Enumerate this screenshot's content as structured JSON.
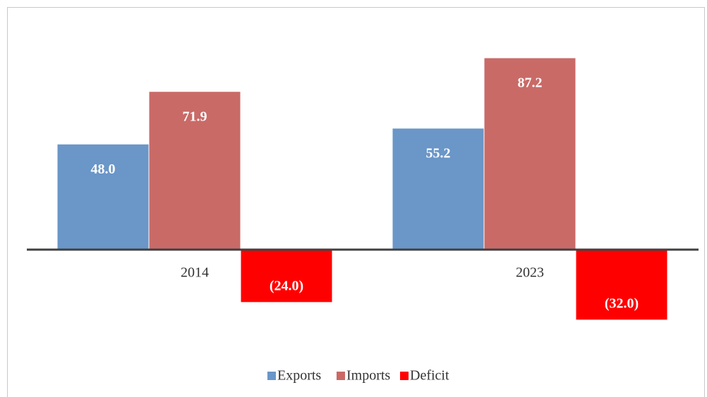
{
  "chart_data": {
    "type": "bar",
    "categories": [
      "2014",
      "2023"
    ],
    "series": [
      {
        "name": "Exports",
        "color": "#6a96c8",
        "values": [
          48.0,
          55.2
        ],
        "value_labels": [
          "48.0",
          "55.2"
        ]
      },
      {
        "name": "Imports",
        "color": "#c96a67",
        "values": [
          71.9,
          87.2
        ],
        "value_labels": [
          "71.9",
          "87.2"
        ]
      },
      {
        "name": "Deficit",
        "color": "#ff0000",
        "values": [
          -24.0,
          -32.0
        ],
        "value_labels": [
          "(24.0)",
          "(32.0)"
        ]
      }
    ],
    "legend": "bottom"
  }
}
